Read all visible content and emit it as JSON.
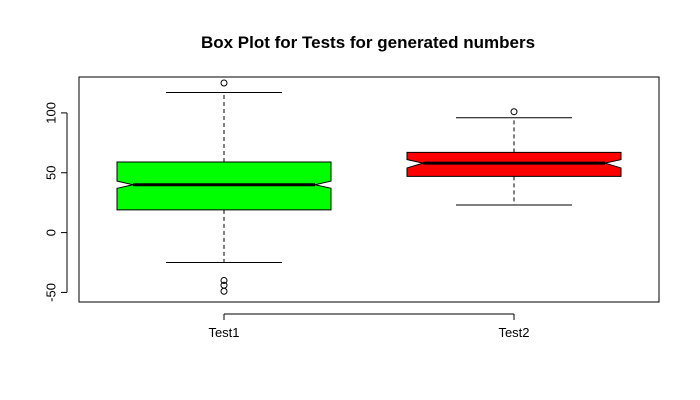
{
  "chart_data": {
    "type": "boxplot",
    "title": "Box Plot for Tests for generated numbers",
    "xlabel": "",
    "ylabel": "",
    "ylim": [
      -58,
      130
    ],
    "yticks": [
      -50,
      0,
      50,
      100
    ],
    "ytick_labels": [
      "-50",
      "0",
      "50",
      "100"
    ],
    "notched": true,
    "series": [
      {
        "name": "Test1",
        "color": "#00ff00",
        "whisker_low": -25,
        "q1": 19,
        "median": 40,
        "q3": 59,
        "whisker_high": 117,
        "notch_low": 37,
        "notch_high": 43,
        "outliers": [
          125,
          -40,
          -44,
          -49
        ]
      },
      {
        "name": "Test2",
        "color": "#ff0000",
        "whisker_low": 23,
        "q1": 47,
        "median": 58,
        "q3": 67,
        "whisker_high": 96,
        "notch_low": 54,
        "notch_high": 61,
        "outliers": [
          101
        ]
      }
    ]
  }
}
